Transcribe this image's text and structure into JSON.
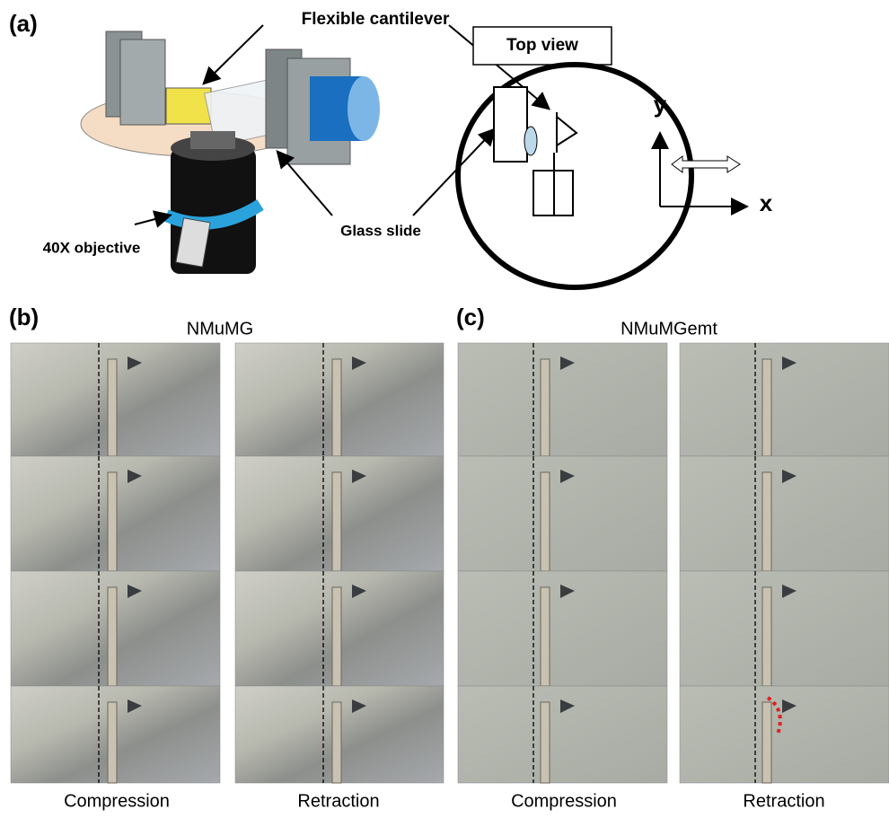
{
  "panel_a": {
    "label": "(a)",
    "cantilever_label": "Flexible cantilever",
    "top_view_label": "Top view",
    "objective_label": "40X objective",
    "glass_slide_label": "Glass slide",
    "axis_y": "y",
    "axis_x": "x"
  },
  "panel_b": {
    "label": "(b)",
    "title": "NMuMG",
    "columns": [
      "Compression",
      "Retraction"
    ]
  },
  "panel_c": {
    "label": "(c)",
    "title": "NMuMGemt",
    "columns": [
      "Compression",
      "Retraction"
    ]
  }
}
